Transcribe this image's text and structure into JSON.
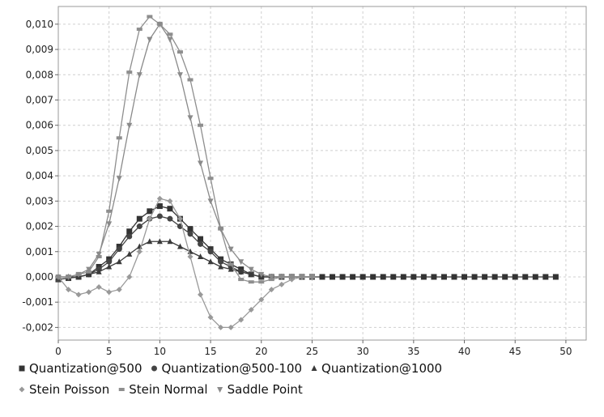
{
  "chart_data": {
    "type": "line",
    "title": "",
    "xlabel": "",
    "ylabel": "",
    "xlim": [
      0,
      52
    ],
    "ylim": [
      -0.0025,
      0.0107
    ],
    "xticks": [
      "0",
      "5",
      "10",
      "15",
      "20",
      "25",
      "30",
      "35",
      "40",
      "45",
      "50"
    ],
    "yticks": [
      "-0,002",
      "-0,001",
      "0,000",
      "0,001",
      "0,002",
      "0,003",
      "0,004",
      "0,005",
      "0,006",
      "0,007",
      "0,008",
      "0,009",
      "0,010"
    ],
    "grid": true,
    "legend_position": "bottom",
    "series": [
      {
        "name": "Quantization@500",
        "marker": "square",
        "color": "#333333",
        "x": [
          0,
          1,
          2,
          3,
          4,
          5,
          6,
          7,
          8,
          9,
          10,
          11,
          12,
          13,
          14,
          15,
          16,
          17,
          18,
          19,
          20,
          21,
          22,
          23,
          24,
          25,
          26,
          27,
          28,
          29,
          30,
          31,
          32,
          33,
          34,
          35,
          36,
          37,
          38,
          39,
          40,
          41,
          42,
          43,
          44,
          45,
          46,
          47,
          48,
          49
        ],
        "y": [
          -0.0001,
          -5e-05,
          0.0,
          0.0001,
          0.0004,
          0.0007,
          0.0012,
          0.0018,
          0.0023,
          0.0026,
          0.0028,
          0.0027,
          0.0023,
          0.0019,
          0.0015,
          0.0011,
          0.0007,
          0.0005,
          0.0003,
          0.0001,
          0.0,
          0.0,
          0.0,
          0.0,
          0.0,
          0.0,
          0.0,
          0.0,
          0.0,
          0.0,
          0.0,
          0.0,
          0.0,
          0.0,
          0.0,
          0.0,
          0.0,
          0.0,
          0.0,
          0.0,
          0.0,
          0.0,
          0.0,
          0.0,
          0.0,
          0.0,
          0.0,
          0.0,
          0.0,
          0.0
        ]
      },
      {
        "name": "Quantization@500-100",
        "marker": "circle",
        "color": "#444444",
        "x": [
          0,
          1,
          2,
          3,
          4,
          5,
          6,
          7,
          8,
          9,
          10,
          11,
          12,
          13,
          14,
          15,
          16,
          17,
          18,
          19,
          20,
          21,
          22,
          23,
          24,
          25
        ],
        "y": [
          -0.0001,
          -5e-05,
          0.0,
          0.0001,
          0.0003,
          0.0006,
          0.0011,
          0.0016,
          0.002,
          0.0023,
          0.0024,
          0.0023,
          0.002,
          0.0017,
          0.0013,
          0.001,
          0.0006,
          0.0004,
          0.0002,
          0.0001,
          0.0,
          0.0,
          0.0,
          0.0,
          0.0,
          0.0
        ]
      },
      {
        "name": "Quantization@1000",
        "marker": "triangle-up",
        "color": "#3a3a3a",
        "x": [
          0,
          1,
          2,
          3,
          4,
          5,
          6,
          7,
          8,
          9,
          10,
          11,
          12,
          13,
          14,
          15,
          16,
          17,
          18,
          19,
          20,
          21,
          22,
          23,
          24,
          25
        ],
        "y": [
          0.0,
          0.0,
          0.0,
          0.0001,
          0.0002,
          0.0004,
          0.0006,
          0.0009,
          0.0012,
          0.0014,
          0.0014,
          0.0014,
          0.0012,
          0.001,
          0.0008,
          0.0006,
          0.0004,
          0.0003,
          0.0002,
          0.0001,
          0.0,
          0.0,
          0.0,
          0.0,
          0.0,
          0.0
        ]
      },
      {
        "name": "Stein Poisson",
        "marker": "diamond",
        "color": "#999999",
        "x": [
          0,
          1,
          2,
          3,
          4,
          5,
          6,
          7,
          8,
          9,
          10,
          11,
          12,
          13,
          14,
          15,
          16,
          17,
          18,
          19,
          20,
          21,
          22,
          23,
          24,
          25
        ],
        "y": [
          0.0,
          -0.0005,
          -0.0007,
          -0.0006,
          -0.0004,
          -0.0006,
          -0.0005,
          0.0,
          0.001,
          0.0023,
          0.0031,
          0.003,
          0.0023,
          0.0008,
          -0.0007,
          -0.0016,
          -0.002,
          -0.002,
          -0.0017,
          -0.0013,
          -0.0009,
          -0.0005,
          -0.0003,
          -0.0001,
          0.0,
          0.0
        ]
      },
      {
        "name": "Stein Normal",
        "marker": "dash",
        "color": "#8e8e8e",
        "x": [
          0,
          1,
          2,
          3,
          4,
          5,
          6,
          7,
          8,
          9,
          10,
          11,
          12,
          13,
          14,
          15,
          16,
          17,
          18,
          19,
          20,
          21,
          22,
          23,
          24,
          25
        ],
        "y": [
          0.0,
          0.0,
          0.0001,
          0.0002,
          0.0008,
          0.0026,
          0.0055,
          0.0081,
          0.0098,
          0.0103,
          0.01,
          0.0096,
          0.0089,
          0.0078,
          0.006,
          0.0039,
          0.0019,
          0.0005,
          -0.0001,
          -0.0002,
          -0.0002,
          -0.0001,
          0.0,
          0.0,
          0.0,
          0.0
        ]
      },
      {
        "name": "Saddle Point",
        "marker": "triangle-down",
        "color": "#8a8a8a",
        "x": [
          0,
          1,
          2,
          3,
          4,
          5,
          6,
          7,
          8,
          9,
          10,
          11,
          12,
          13,
          14,
          15,
          16,
          17,
          18,
          19,
          20,
          21,
          22,
          23,
          24,
          25
        ],
        "y": [
          0.0,
          0.0,
          0.0001,
          0.0003,
          0.0009,
          0.0021,
          0.0039,
          0.006,
          0.008,
          0.0094,
          0.01,
          0.0094,
          0.008,
          0.0063,
          0.0045,
          0.003,
          0.0019,
          0.0011,
          0.0006,
          0.0003,
          0.0001,
          0.0,
          0.0,
          0.0,
          0.0,
          0.0
        ]
      }
    ]
  }
}
